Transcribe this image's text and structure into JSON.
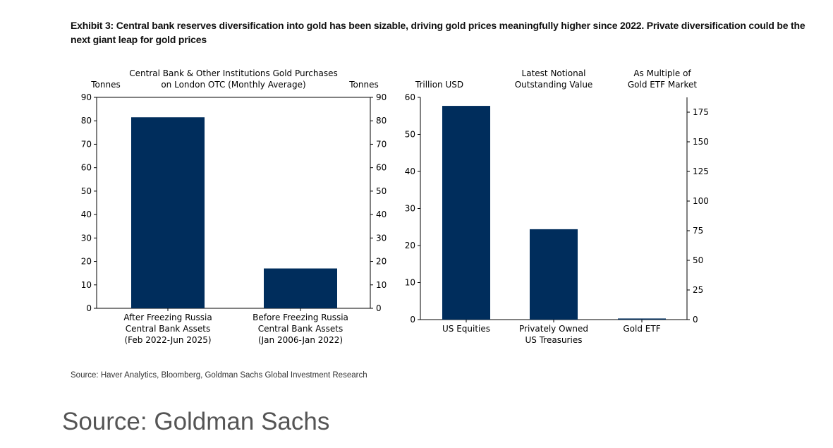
{
  "title": "Exhibit 3: Central bank reserves diversification into gold has been sizable, driving gold prices meaningfully higher since 2022. Private diversification could be the next giant leap for gold prices",
  "source": "Source: Haver Analytics, Bloomberg, Goldman Sachs Global Investment Research",
  "footer": "Source: Goldman Sachs",
  "colors": {
    "bar": "#002D5C"
  },
  "chart_data": [
    {
      "type": "bar",
      "title_lines": [
        "Central Bank & Other Institutions Gold Purchases",
        "on London OTC (Monthly Average)"
      ],
      "ylabel_left": "Tonnes",
      "ylabel_right": "Tonnes",
      "ylim": [
        0,
        90
      ],
      "yticks": [
        0,
        10,
        20,
        30,
        40,
        50,
        60,
        70,
        80,
        90
      ],
      "categories": [
        [
          "After Freezing Russia",
          "Central Bank Assets",
          "(Feb 2022-Jun 2025)"
        ],
        [
          "Before Freezing Russia",
          "Central Bank Assets",
          "(Jan 2006-Jan 2022)"
        ]
      ],
      "values": [
        81.5,
        17
      ]
    },
    {
      "type": "bar",
      "title_left_lines": [
        "Latest Notional",
        "Outstanding Value"
      ],
      "title_right_lines": [
        "As Multiple of",
        "Gold ETF Market"
      ],
      "ylabel_left": "Trillion USD",
      "ylim_left": [
        0,
        60
      ],
      "yticks_left": [
        0,
        10,
        20,
        30,
        40,
        50,
        60
      ],
      "ylim_right": [
        0,
        187.5
      ],
      "yticks_right": [
        0,
        25,
        50,
        75,
        100,
        125,
        150,
        175
      ],
      "categories": [
        [
          "US Equities"
        ],
        [
          "Privately Owned",
          "US Treasuries"
        ],
        [
          "Gold ETF"
        ]
      ],
      "values": [
        57.7,
        24.4,
        0.3
      ]
    }
  ]
}
